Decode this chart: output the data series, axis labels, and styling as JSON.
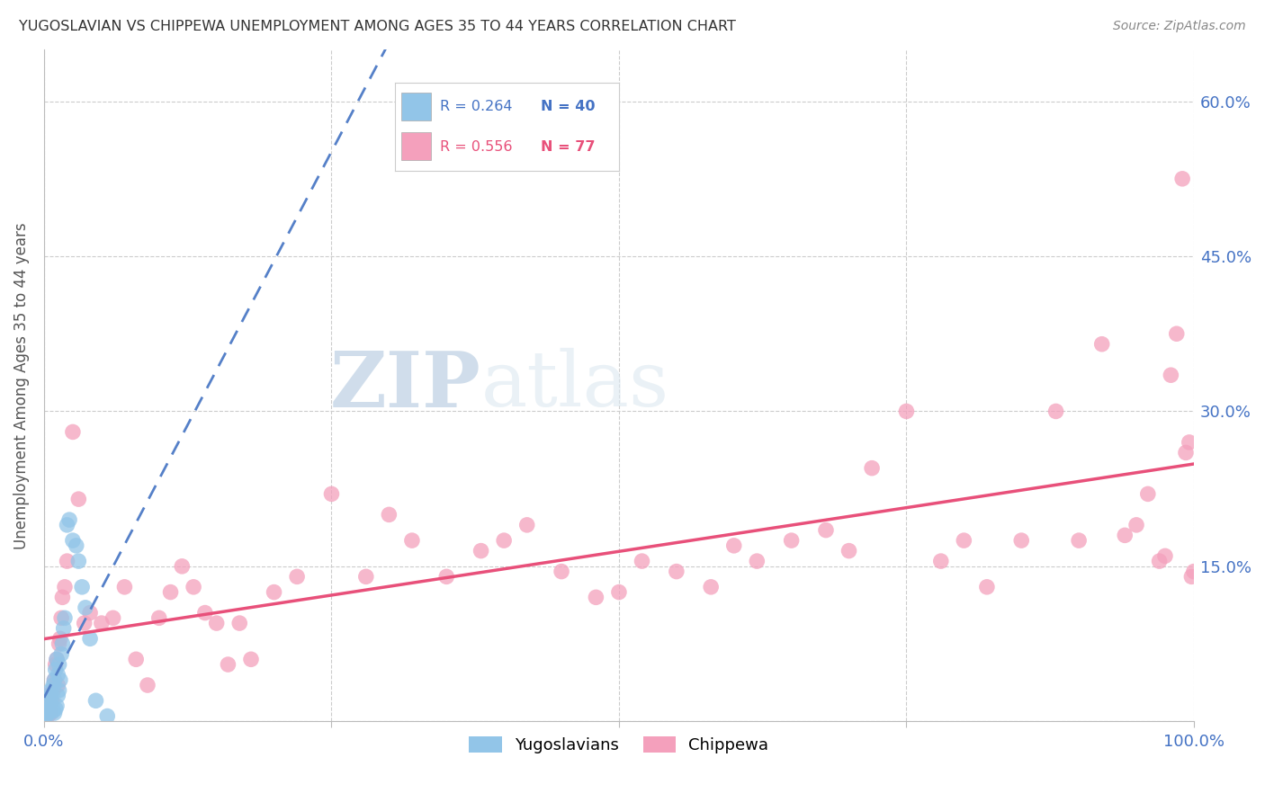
{
  "title": "YUGOSLAVIAN VS CHIPPEWA UNEMPLOYMENT AMONG AGES 35 TO 44 YEARS CORRELATION CHART",
  "source": "Source: ZipAtlas.com",
  "ylabel": "Unemployment Among Ages 35 to 44 years",
  "xlim": [
    0,
    1.0
  ],
  "ylim": [
    0,
    0.65
  ],
  "legend_r1": "R = 0.264",
  "legend_n1": "N = 40",
  "legend_r2": "R = 0.556",
  "legend_n2": "N = 77",
  "color_yugo": "#92C5E8",
  "color_chip": "#F4A0BC",
  "color_yugo_line": "#5580C8",
  "color_chip_line": "#E8507A",
  "watermark_zip": "ZIP",
  "watermark_atlas": "atlas",
  "background_color": "#ffffff",
  "yugo_x": [
    0.001,
    0.002,
    0.002,
    0.003,
    0.003,
    0.004,
    0.004,
    0.005,
    0.005,
    0.006,
    0.006,
    0.007,
    0.007,
    0.008,
    0.008,
    0.009,
    0.009,
    0.01,
    0.01,
    0.011,
    0.011,
    0.012,
    0.012,
    0.013,
    0.013,
    0.014,
    0.015,
    0.016,
    0.017,
    0.018,
    0.02,
    0.022,
    0.025,
    0.028,
    0.03,
    0.033,
    0.036,
    0.04,
    0.045,
    0.055
  ],
  "yugo_y": [
    0.005,
    0.005,
    0.01,
    0.008,
    0.015,
    0.01,
    0.02,
    0.012,
    0.025,
    0.01,
    0.03,
    0.015,
    0.025,
    0.01,
    0.035,
    0.008,
    0.04,
    0.012,
    0.05,
    0.015,
    0.06,
    0.025,
    0.045,
    0.03,
    0.055,
    0.04,
    0.065,
    0.075,
    0.09,
    0.1,
    0.19,
    0.195,
    0.175,
    0.17,
    0.155,
    0.13,
    0.11,
    0.08,
    0.02,
    0.005
  ],
  "chip_x": [
    0.002,
    0.003,
    0.004,
    0.005,
    0.006,
    0.007,
    0.008,
    0.009,
    0.01,
    0.011,
    0.012,
    0.013,
    0.014,
    0.015,
    0.016,
    0.018,
    0.02,
    0.025,
    0.03,
    0.035,
    0.04,
    0.05,
    0.06,
    0.07,
    0.08,
    0.09,
    0.1,
    0.11,
    0.12,
    0.13,
    0.14,
    0.15,
    0.16,
    0.17,
    0.18,
    0.2,
    0.22,
    0.25,
    0.28,
    0.3,
    0.32,
    0.35,
    0.38,
    0.4,
    0.42,
    0.45,
    0.48,
    0.5,
    0.52,
    0.55,
    0.58,
    0.6,
    0.62,
    0.65,
    0.68,
    0.7,
    0.72,
    0.75,
    0.78,
    0.8,
    0.82,
    0.85,
    0.88,
    0.9,
    0.92,
    0.94,
    0.95,
    0.96,
    0.97,
    0.975,
    0.98,
    0.985,
    0.99,
    0.993,
    0.996,
    0.998,
    1.0
  ],
  "chip_y": [
    0.025,
    0.005,
    0.015,
    0.01,
    0.008,
    0.02,
    0.03,
    0.04,
    0.055,
    0.06,
    0.035,
    0.075,
    0.08,
    0.1,
    0.12,
    0.13,
    0.155,
    0.28,
    0.215,
    0.095,
    0.105,
    0.095,
    0.1,
    0.13,
    0.06,
    0.035,
    0.1,
    0.125,
    0.15,
    0.13,
    0.105,
    0.095,
    0.055,
    0.095,
    0.06,
    0.125,
    0.14,
    0.22,
    0.14,
    0.2,
    0.175,
    0.14,
    0.165,
    0.175,
    0.19,
    0.145,
    0.12,
    0.125,
    0.155,
    0.145,
    0.13,
    0.17,
    0.155,
    0.175,
    0.185,
    0.165,
    0.245,
    0.3,
    0.155,
    0.175,
    0.13,
    0.175,
    0.3,
    0.175,
    0.365,
    0.18,
    0.19,
    0.22,
    0.155,
    0.16,
    0.335,
    0.375,
    0.525,
    0.26,
    0.27,
    0.14,
    0.145
  ]
}
